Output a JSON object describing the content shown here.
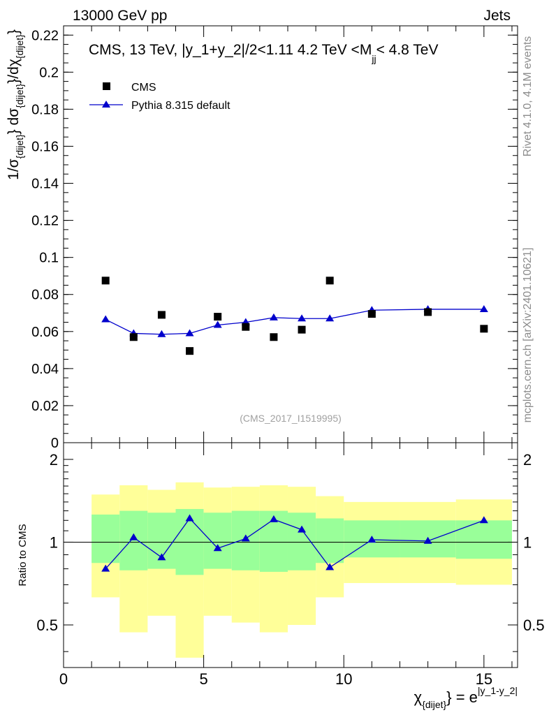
{
  "header": {
    "left": "13000 GeV pp",
    "right": "Jets"
  },
  "side_labels": {
    "rivet": "Rivet 4.1.0,  4.1M events",
    "mcplots": "mcplots.cern.ch [arXiv:2401.10621]"
  },
  "chart_data": {
    "type": "scatter",
    "title": "CMS, 13 TeV, |y_1+y_2|/2<1.11 4.2 TeV <M_jj< 4.8 TeV",
    "title_parts": {
      "main": "CMS, 13 TeV, |y_1+y_2|/2<1.11 4.2 TeV <M",
      "sub": "jj",
      "tail": "< 4.8 TeV"
    },
    "watermark": "(CMS_2017_I1519995)",
    "xlabel": "χ_{dijet} = e^{|y_1-y_2|}",
    "xlabel_parts": {
      "chi": "χ",
      "sub": "{dijet}",
      "eq": "} = e",
      "sup": "|y_1-y_2|"
    },
    "ylabel": "1/σ_{dijet} dσ_{dijet}/dχ_{dijet}",
    "xlim": [
      0,
      16.2
    ],
    "ylim": [
      0,
      0.225
    ],
    "x_ticks": [
      0,
      5,
      10,
      15
    ],
    "y_ticks": [
      0,
      0.02,
      0.04,
      0.06,
      0.08,
      0.1,
      0.12,
      0.14,
      0.16,
      0.18,
      0.2,
      0.22
    ],
    "y_tick_labels": [
      "0",
      "0.02",
      "0.04",
      "0.06",
      "0.08",
      "0.1",
      "0.12",
      "0.14",
      "0.16",
      "0.18",
      "0.2",
      "0.22"
    ],
    "legend": [
      {
        "name": "CMS",
        "marker": "square"
      },
      {
        "name": "Pythia 8.315 default",
        "marker": "triangle"
      }
    ],
    "series": [
      {
        "name": "CMS",
        "color": "#000000",
        "x": [
          1.5,
          2.5,
          3.5,
          4.5,
          5.5,
          6.5,
          7.5,
          8.5,
          9.5,
          11,
          13,
          15
        ],
        "y": [
          0.0875,
          0.057,
          0.069,
          0.0495,
          0.068,
          0.0625,
          0.057,
          0.061,
          0.0875,
          0.0695,
          0.0705,
          0.0615
        ]
      },
      {
        "name": "Pythia 8.315 default",
        "color": "#0000cc",
        "x": [
          1.5,
          2.5,
          3.5,
          4.5,
          5.5,
          6.5,
          7.5,
          8.5,
          9.5,
          11,
          13,
          15
        ],
        "y": [
          0.0665,
          0.059,
          0.0585,
          0.059,
          0.0635,
          0.065,
          0.0675,
          0.067,
          0.067,
          0.0715,
          0.072,
          0.072
        ]
      }
    ],
    "ratio": {
      "ylabel": "Ratio to CMS",
      "ylim": [
        0.35,
        2.3
      ],
      "y_ticks": [
        0.5,
        1,
        2
      ],
      "y_tick_labels": [
        "0.5",
        "1",
        "2"
      ],
      "bins": [
        {
          "lo": 1,
          "hi": 2,
          "inner": [
            0.84,
            1.26
          ],
          "outer": [
            0.63,
            1.49
          ]
        },
        {
          "lo": 2,
          "hi": 3,
          "inner": [
            0.79,
            1.3
          ],
          "outer": [
            0.47,
            1.61
          ]
        },
        {
          "lo": 3,
          "hi": 4,
          "inner": [
            0.8,
            1.28
          ],
          "outer": [
            0.54,
            1.55
          ]
        },
        {
          "lo": 4,
          "hi": 5,
          "inner": [
            0.76,
            1.32
          ],
          "outer": [
            0.38,
            1.65
          ]
        },
        {
          "lo": 5,
          "hi": 6,
          "inner": [
            0.8,
            1.28
          ],
          "outer": [
            0.54,
            1.58
          ]
        },
        {
          "lo": 6,
          "hi": 7,
          "inner": [
            0.79,
            1.3
          ],
          "outer": [
            0.51,
            1.59
          ]
        },
        {
          "lo": 7,
          "hi": 8,
          "inner": [
            0.78,
            1.3
          ],
          "outer": [
            0.47,
            1.61
          ]
        },
        {
          "lo": 8,
          "hi": 9,
          "inner": [
            0.79,
            1.28
          ],
          "outer": [
            0.5,
            1.59
          ]
        },
        {
          "lo": 9,
          "hi": 10,
          "inner": [
            0.84,
            1.22
          ],
          "outer": [
            0.63,
            1.47
          ]
        },
        {
          "lo": 10,
          "hi": 12,
          "inner": [
            0.88,
            1.2
          ],
          "outer": [
            0.71,
            1.4
          ]
        },
        {
          "lo": 12,
          "hi": 14,
          "inner": [
            0.88,
            1.2
          ],
          "outer": [
            0.71,
            1.4
          ]
        },
        {
          "lo": 14,
          "hi": 16,
          "inner": [
            0.87,
            1.2
          ],
          "outer": [
            0.7,
            1.43
          ]
        }
      ],
      "pythia": {
        "x": [
          1.5,
          2.5,
          3.5,
          4.5,
          5.5,
          6.5,
          7.5,
          8.5,
          9.5,
          11,
          13,
          15
        ],
        "y": [
          0.8,
          1.04,
          0.88,
          1.22,
          0.95,
          1.03,
          1.21,
          1.11,
          0.81,
          1.02,
          1.01,
          1.2
        ]
      }
    }
  }
}
